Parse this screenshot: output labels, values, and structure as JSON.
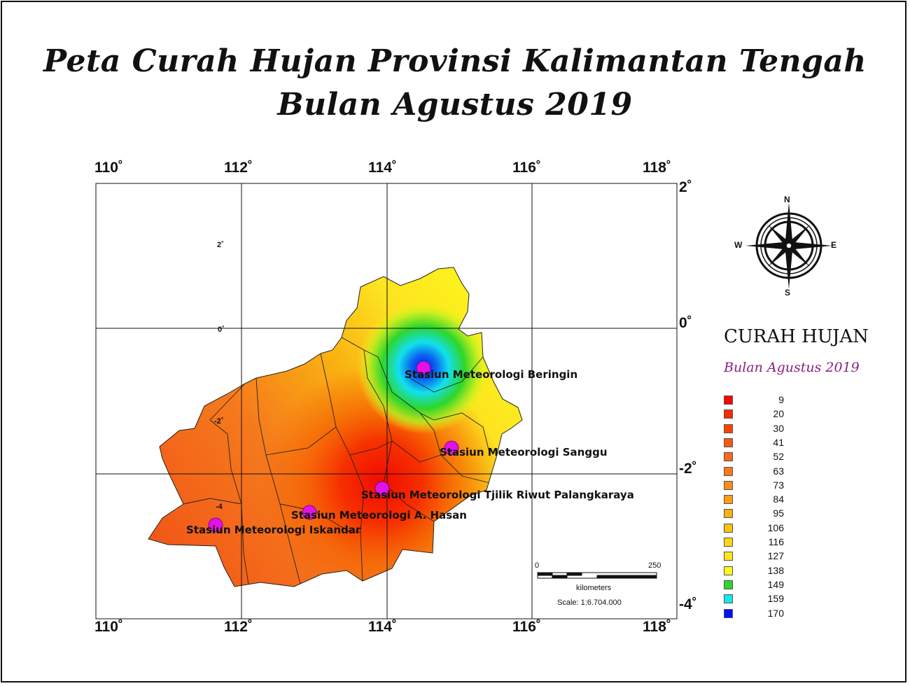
{
  "title_line1": "Peta Curah Hujan Provinsi Kalimantan Tengah",
  "title_line2": "Bulan Agustus 2019",
  "axes": {
    "top_labels": [
      "110˚",
      "112˚",
      "114˚",
      "116˚",
      "118˚"
    ],
    "bottom_labels": [
      "110˚",
      "112˚",
      "114˚",
      "116˚",
      "118˚"
    ],
    "right_labels": [
      "2˚",
      "0˚",
      "-2˚",
      "-4˚"
    ],
    "inner_labels": [
      "2˚",
      "0˚",
      "-2˚",
      "-4"
    ]
  },
  "stations": [
    {
      "name": "Stasiun Meteorologi Beringin",
      "rain": 170
    },
    {
      "name": "Stasiun Meteorologi Sanggu",
      "rain": 138
    },
    {
      "name": "Stasiun Meteorologi  Tjilik Riwut Palangkaraya",
      "rain": 9
    },
    {
      "name": "Stasiun Meteorologi A. Hasan",
      "rain": 30
    },
    {
      "name": "Stasiun Meteorologi Iskandar",
      "rain": 41
    }
  ],
  "compass": {
    "n": "N",
    "s": "S",
    "e": "E",
    "w": "W"
  },
  "legend": {
    "title": "CURAH HUJAN",
    "subtitle": "Bulan Agustus 2019",
    "items": [
      {
        "value": "9",
        "color": "#f20a00"
      },
      {
        "value": "20",
        "color": "#f72a00"
      },
      {
        "value": "30",
        "color": "#f84400"
      },
      {
        "value": "41",
        "color": "#f65a10"
      },
      {
        "value": "52",
        "color": "#f56a18"
      },
      {
        "value": "63",
        "color": "#f57a1c"
      },
      {
        "value": "73",
        "color": "#f78c1c"
      },
      {
        "value": "84",
        "color": "#f99e16"
      },
      {
        "value": "95",
        "color": "#fab012"
      },
      {
        "value": "106",
        "color": "#fbc214"
      },
      {
        "value": "116",
        "color": "#fcd41a"
      },
      {
        "value": "127",
        "color": "#fde420"
      },
      {
        "value": "138",
        "color": "#fdf51c"
      },
      {
        "value": "149",
        "color": "#2ed62a"
      },
      {
        "value": "159",
        "color": "#12e8ee"
      },
      {
        "value": "170",
        "color": "#0010f5"
      }
    ]
  },
  "scale_bar": {
    "start": "0",
    "end": "250",
    "unit": "kilometers",
    "ratio": "Scale: 1:6.704.000"
  }
}
